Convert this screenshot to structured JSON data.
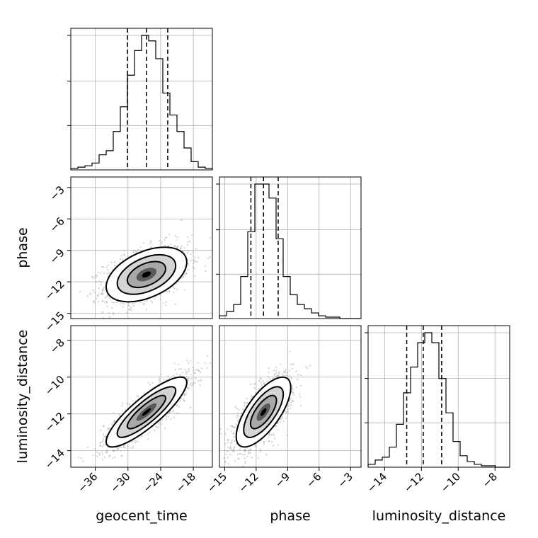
{
  "chart_data": {
    "type": "corner",
    "parameters": [
      "geocent_time",
      "phase",
      "luminosity_distance"
    ],
    "axis_labels": {
      "x": [
        "geocent_time",
        "phase",
        "luminosity_distance"
      ],
      "y": [
        "",
        "phase",
        "luminosity_distance"
      ]
    },
    "ticks": {
      "geocent_time": [
        -36,
        -30,
        -24,
        -18
      ],
      "phase": [
        -15,
        -12,
        -9,
        -6,
        -3
      ],
      "luminosity_distance": [
        -14,
        -12,
        -10,
        -8
      ]
    },
    "tick_labels": {
      "geocent_time": [
        "−36",
        "−30",
        "−24",
        "−18"
      ],
      "phase": [
        "−15",
        "−12",
        "−9",
        "−6",
        "−3"
      ],
      "luminosity_distance": [
        "−14",
        "−12",
        "−10",
        "−8"
      ]
    },
    "ranges": {
      "geocent_time": [
        -40.5,
        -14.5
      ],
      "phase": [
        -15.5,
        -2.0
      ],
      "luminosity_distance": [
        -14.9,
        -7.2
      ]
    },
    "quantiles": {
      "geocent_time": [
        -30.1,
        -26.6,
        -22.7
      ],
      "phase": [
        -12.5,
        -11.3,
        -9.9
      ],
      "luminosity_distance": [
        -12.8,
        -11.9,
        -10.9
      ]
    },
    "histograms": {
      "geocent_time": [
        0.01,
        0.02,
        0.03,
        0.05,
        0.11,
        0.14,
        0.28,
        0.46,
        0.69,
        0.87,
        0.98,
        0.94,
        0.81,
        0.56,
        0.4,
        0.28,
        0.16,
        0.06,
        0.02,
        0.01
      ],
      "phase": [
        0.02,
        0.05,
        0.1,
        0.3,
        0.62,
        0.96,
        0.96,
        0.86,
        0.57,
        0.3,
        0.17,
        0.1,
        0.07,
        0.04,
        0.02,
        0.01,
        0.01,
        0.0,
        0.0,
        0.0
      ],
      "luminosity_distance": [
        0.02,
        0.05,
        0.07,
        0.14,
        0.3,
        0.52,
        0.7,
        0.87,
        0.94,
        0.87,
        0.62,
        0.38,
        0.18,
        0.08,
        0.04,
        0.02,
        0.01,
        0.01,
        0.0,
        0.0
      ]
    },
    "correlations": {
      "phase_vs_geocent_time": 0.45,
      "luminosity_distance_vs_geocent_time": 0.85,
      "luminosity_distance_vs_phase": 0.7
    },
    "grid": true,
    "hist_style": "step",
    "contour_levels": 3
  }
}
